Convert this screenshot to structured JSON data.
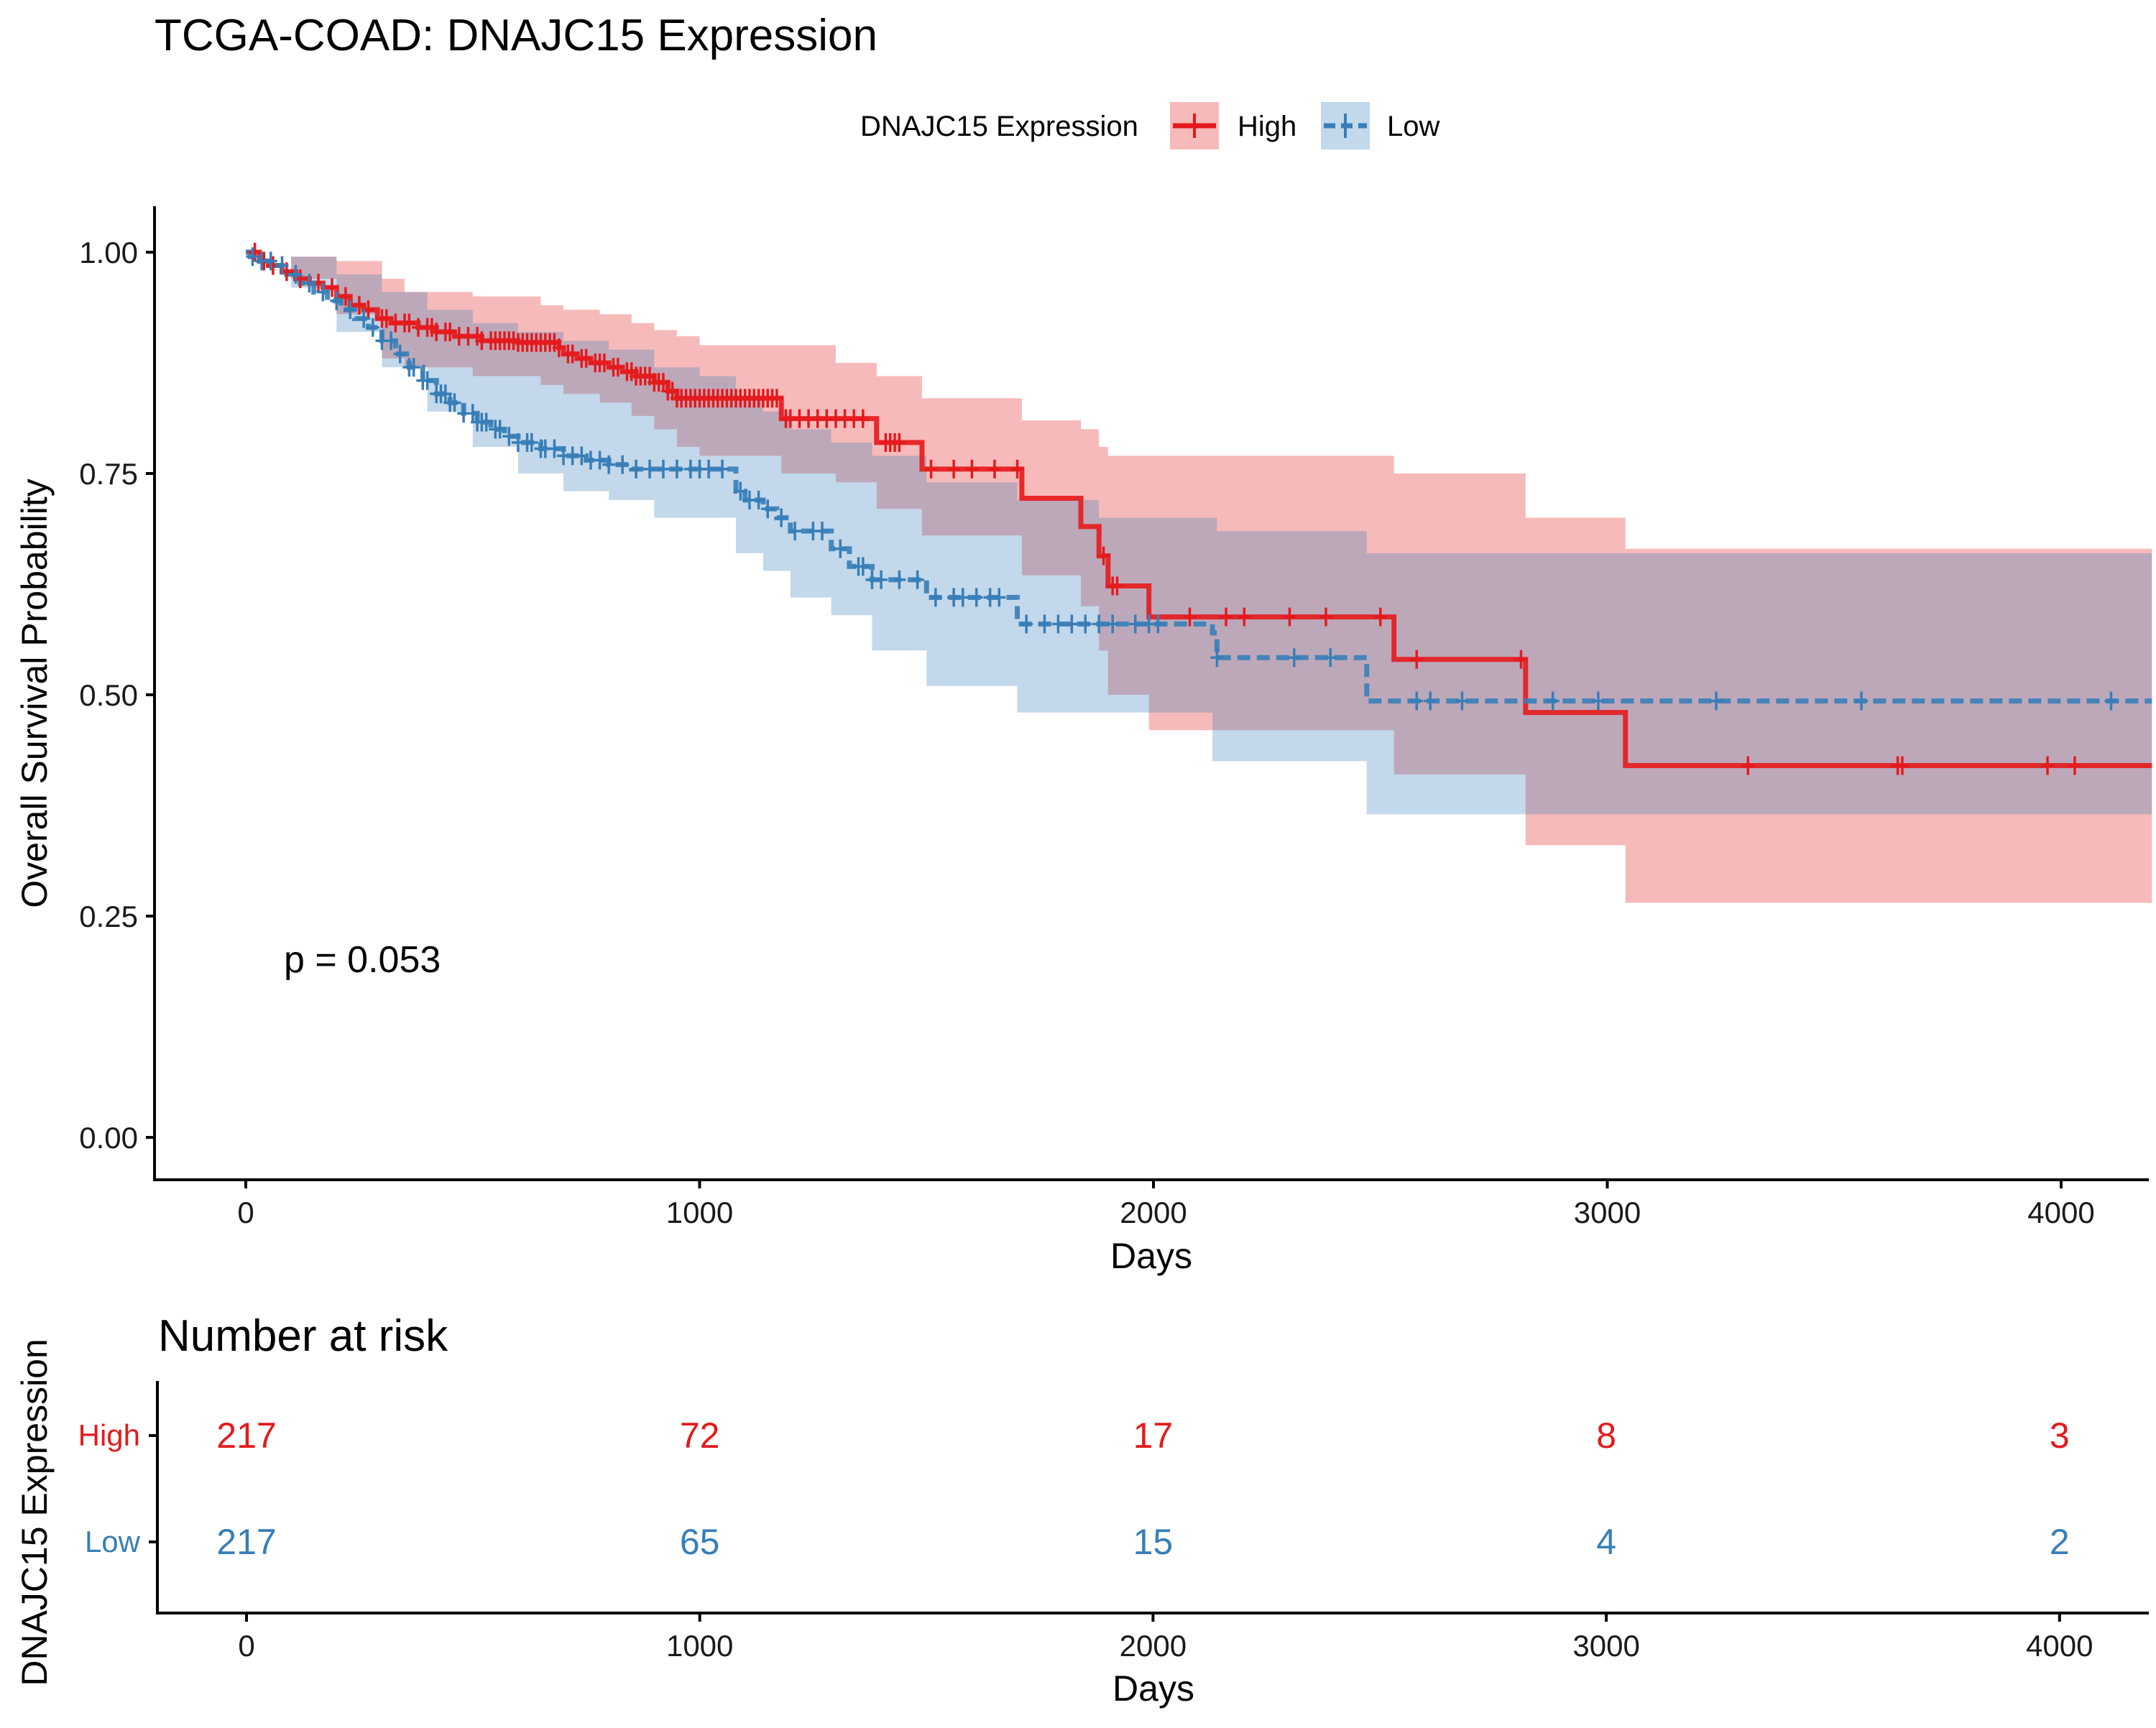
{
  "chart_data": {
    "type": "line",
    "subtype": "kaplan-meier",
    "title": "TCGA-COAD: DNAJC15 Expression",
    "xlabel": "Days",
    "ylabel": "Overall Survival Probability",
    "xlim": [
      -200,
      4200
    ],
    "ylim": [
      -0.05,
      1.05
    ],
    "x_ticks": [
      0,
      1000,
      2000,
      3000,
      4000
    ],
    "y_ticks": [
      0.0,
      0.25,
      0.5,
      0.75,
      1.0
    ],
    "x_tick_labels": [
      "0",
      "1000",
      "2000",
      "3000",
      "4000"
    ],
    "y_tick_labels": [
      "0.00",
      "0.25",
      "0.50",
      "0.75",
      "1.00"
    ],
    "grid": false,
    "legend": {
      "title": "DNAJC15 Expression",
      "position": "top",
      "entries": [
        "High",
        "Low"
      ]
    },
    "annotation": "p = 0.053",
    "series": [
      {
        "name": "High",
        "color": "#E41A1C",
        "line_style": "solid",
        "steps": [
          [
            0,
            1.0
          ],
          [
            30,
            0.99
          ],
          [
            50,
            0.985
          ],
          [
            80,
            0.978
          ],
          [
            110,
            0.97
          ],
          [
            140,
            0.965
          ],
          [
            170,
            0.96
          ],
          [
            200,
            0.95
          ],
          [
            230,
            0.94
          ],
          [
            260,
            0.935
          ],
          [
            290,
            0.925
          ],
          [
            320,
            0.92
          ],
          [
            380,
            0.915
          ],
          [
            420,
            0.91
          ],
          [
            460,
            0.905
          ],
          [
            520,
            0.9
          ],
          [
            600,
            0.898
          ],
          [
            690,
            0.892
          ],
          [
            700,
            0.885
          ],
          [
            730,
            0.88
          ],
          [
            760,
            0.875
          ],
          [
            800,
            0.87
          ],
          [
            830,
            0.865
          ],
          [
            860,
            0.86
          ],
          [
            900,
            0.853
          ],
          [
            930,
            0.843
          ],
          [
            950,
            0.835
          ],
          [
            1180,
            0.812
          ],
          [
            1390,
            0.785
          ],
          [
            1490,
            0.755
          ],
          [
            1710,
            0.722
          ],
          [
            1840,
            0.69
          ],
          [
            1880,
            0.657
          ],
          [
            1900,
            0.623
          ],
          [
            1990,
            0.588
          ],
          [
            2530,
            0.54
          ],
          [
            2820,
            0.48
          ],
          [
            3040,
            0.42
          ]
        ],
        "end_x": 4200,
        "ci_upper": [
          [
            0,
            1.0
          ],
          [
            100,
            0.995
          ],
          [
            200,
            0.99
          ],
          [
            300,
            0.97
          ],
          [
            350,
            0.955
          ],
          [
            500,
            0.95
          ],
          [
            650,
            0.94
          ],
          [
            700,
            0.935
          ],
          [
            780,
            0.93
          ],
          [
            850,
            0.92
          ],
          [
            900,
            0.912
          ],
          [
            950,
            0.905
          ],
          [
            1000,
            0.895
          ],
          [
            1180,
            0.895
          ],
          [
            1300,
            0.875
          ],
          [
            1390,
            0.86
          ],
          [
            1490,
            0.835
          ],
          [
            1710,
            0.81
          ],
          [
            1840,
            0.8
          ],
          [
            1880,
            0.78
          ],
          [
            1900,
            0.77
          ],
          [
            1990,
            0.77
          ],
          [
            2130,
            0.77
          ],
          [
            2530,
            0.75
          ],
          [
            2820,
            0.7
          ],
          [
            3040,
            0.665
          ]
        ],
        "ci_lower": [
          [
            0,
            1.0
          ],
          [
            100,
            0.97
          ],
          [
            200,
            0.93
          ],
          [
            300,
            0.88
          ],
          [
            350,
            0.87
          ],
          [
            500,
            0.86
          ],
          [
            650,
            0.85
          ],
          [
            700,
            0.84
          ],
          [
            780,
            0.83
          ],
          [
            850,
            0.815
          ],
          [
            900,
            0.8
          ],
          [
            950,
            0.78
          ],
          [
            1000,
            0.77
          ],
          [
            1180,
            0.75
          ],
          [
            1300,
            0.74
          ],
          [
            1390,
            0.71
          ],
          [
            1490,
            0.68
          ],
          [
            1710,
            0.635
          ],
          [
            1840,
            0.6
          ],
          [
            1880,
            0.55
          ],
          [
            1900,
            0.5
          ],
          [
            1990,
            0.46
          ],
          [
            2130,
            0.46
          ],
          [
            2530,
            0.41
          ],
          [
            2820,
            0.33
          ],
          [
            3040,
            0.265
          ]
        ],
        "censor_times": [
          20,
          40,
          60,
          90,
          120,
          160,
          190,
          220,
          250,
          270,
          300,
          310,
          330,
          350,
          360,
          380,
          400,
          410,
          420,
          440,
          450,
          470,
          490,
          510,
          520,
          540,
          550,
          560,
          570,
          580,
          590,
          600,
          610,
          620,
          630,
          640,
          650,
          660,
          670,
          680,
          690,
          710,
          720,
          740,
          750,
          770,
          780,
          790,
          810,
          820,
          840,
          850,
          860,
          870,
          880,
          890,
          900,
          910,
          920,
          930,
          940,
          950,
          960,
          970,
          980,
          990,
          1000,
          1010,
          1020,
          1030,
          1040,
          1050,
          1060,
          1070,
          1080,
          1090,
          1100,
          1110,
          1120,
          1130,
          1140,
          1150,
          1160,
          1170,
          1190,
          1200,
          1220,
          1240,
          1260,
          1280,
          1300,
          1320,
          1340,
          1360,
          1410,
          1420,
          1430,
          1440,
          1510,
          1560,
          1600,
          1650,
          1700,
          1890,
          1910,
          1920,
          2080,
          2160,
          2200,
          2300,
          2380,
          2500,
          2580,
          2810,
          3310,
          3640,
          3650,
          3970,
          4030
        ]
      },
      {
        "name": "Low",
        "color": "#377EB8",
        "line_style": "dashed",
        "steps": [
          [
            0,
            1.0
          ],
          [
            10,
            0.995
          ],
          [
            30,
            0.99
          ],
          [
            60,
            0.985
          ],
          [
            90,
            0.975
          ],
          [
            120,
            0.965
          ],
          [
            150,
            0.955
          ],
          [
            180,
            0.945
          ],
          [
            210,
            0.935
          ],
          [
            240,
            0.925
          ],
          [
            270,
            0.915
          ],
          [
            300,
            0.9
          ],
          [
            330,
            0.885
          ],
          [
            360,
            0.87
          ],
          [
            390,
            0.855
          ],
          [
            420,
            0.84
          ],
          [
            450,
            0.83
          ],
          [
            480,
            0.818
          ],
          [
            510,
            0.808
          ],
          [
            540,
            0.8
          ],
          [
            570,
            0.792
          ],
          [
            600,
            0.785
          ],
          [
            650,
            0.778
          ],
          [
            700,
            0.77
          ],
          [
            750,
            0.765
          ],
          [
            800,
            0.76
          ],
          [
            850,
            0.755
          ],
          [
            1080,
            0.73
          ],
          [
            1100,
            0.72
          ],
          [
            1140,
            0.71
          ],
          [
            1170,
            0.7
          ],
          [
            1200,
            0.685
          ],
          [
            1290,
            0.665
          ],
          [
            1330,
            0.645
          ],
          [
            1380,
            0.63
          ],
          [
            1500,
            0.61
          ],
          [
            1700,
            0.58
          ],
          [
            2130,
            0.57
          ],
          [
            2140,
            0.542
          ],
          [
            2470,
            0.493
          ]
        ],
        "end_x": 4200,
        "ci_upper": [
          [
            0,
            1.0
          ],
          [
            100,
            0.995
          ],
          [
            200,
            0.975
          ],
          [
            300,
            0.955
          ],
          [
            400,
            0.935
          ],
          [
            500,
            0.92
          ],
          [
            600,
            0.91
          ],
          [
            700,
            0.9
          ],
          [
            800,
            0.89
          ],
          [
            900,
            0.87
          ],
          [
            1000,
            0.86
          ],
          [
            1080,
            0.835
          ],
          [
            1140,
            0.82
          ],
          [
            1200,
            0.8
          ],
          [
            1290,
            0.785
          ],
          [
            1380,
            0.77
          ],
          [
            1500,
            0.74
          ],
          [
            1700,
            0.72
          ],
          [
            1880,
            0.7
          ],
          [
            2130,
            0.7
          ],
          [
            2140,
            0.685
          ],
          [
            2470,
            0.66
          ]
        ],
        "ci_lower": [
          [
            0,
            1.0
          ],
          [
            100,
            0.96
          ],
          [
            200,
            0.91
          ],
          [
            300,
            0.87
          ],
          [
            400,
            0.82
          ],
          [
            500,
            0.78
          ],
          [
            600,
            0.75
          ],
          [
            700,
            0.73
          ],
          [
            800,
            0.72
          ],
          [
            900,
            0.7
          ],
          [
            1000,
            0.7
          ],
          [
            1080,
            0.66
          ],
          [
            1140,
            0.64
          ],
          [
            1200,
            0.61
          ],
          [
            1290,
            0.59
          ],
          [
            1380,
            0.55
          ],
          [
            1500,
            0.51
          ],
          [
            1700,
            0.48
          ],
          [
            1880,
            0.48
          ],
          [
            2000,
            0.48
          ],
          [
            2130,
            0.425
          ],
          [
            2470,
            0.365
          ],
          [
            2820,
            0.365
          ]
        ],
        "censor_times": [
          15,
          35,
          55,
          80,
          110,
          140,
          170,
          200,
          230,
          260,
          280,
          300,
          320,
          340,
          360,
          370,
          390,
          400,
          420,
          430,
          440,
          450,
          460,
          480,
          500,
          510,
          520,
          530,
          550,
          560,
          580,
          600,
          620,
          630,
          650,
          660,
          680,
          700,
          720,
          740,
          760,
          780,
          800,
          830,
          860,
          890,
          920,
          950,
          980,
          1000,
          1020,
          1050,
          1090,
          1110,
          1130,
          1150,
          1180,
          1210,
          1250,
          1270,
          1310,
          1350,
          1360,
          1380,
          1400,
          1440,
          1480,
          1520,
          1560,
          1580,
          1610,
          1640,
          1660,
          1720,
          1760,
          1790,
          1820,
          1850,
          1880,
          1910,
          1960,
          1990,
          2010,
          2140,
          2310,
          2390,
          2580,
          2610,
          2680,
          2880,
          2980,
          3240,
          3560,
          4110
        ]
      }
    ],
    "risk_table": {
      "title": "Number at risk",
      "ylabel": "DNAJC15 Expression",
      "xlabel": "Days",
      "times": [
        0,
        1000,
        2000,
        3000,
        4000
      ],
      "rows": [
        {
          "name": "High",
          "color": "#E41A1C",
          "values": [
            217,
            72,
            17,
            8,
            3
          ]
        },
        {
          "name": "Low",
          "color": "#377EB8",
          "values": [
            217,
            65,
            15,
            4,
            2
          ]
        }
      ]
    }
  }
}
